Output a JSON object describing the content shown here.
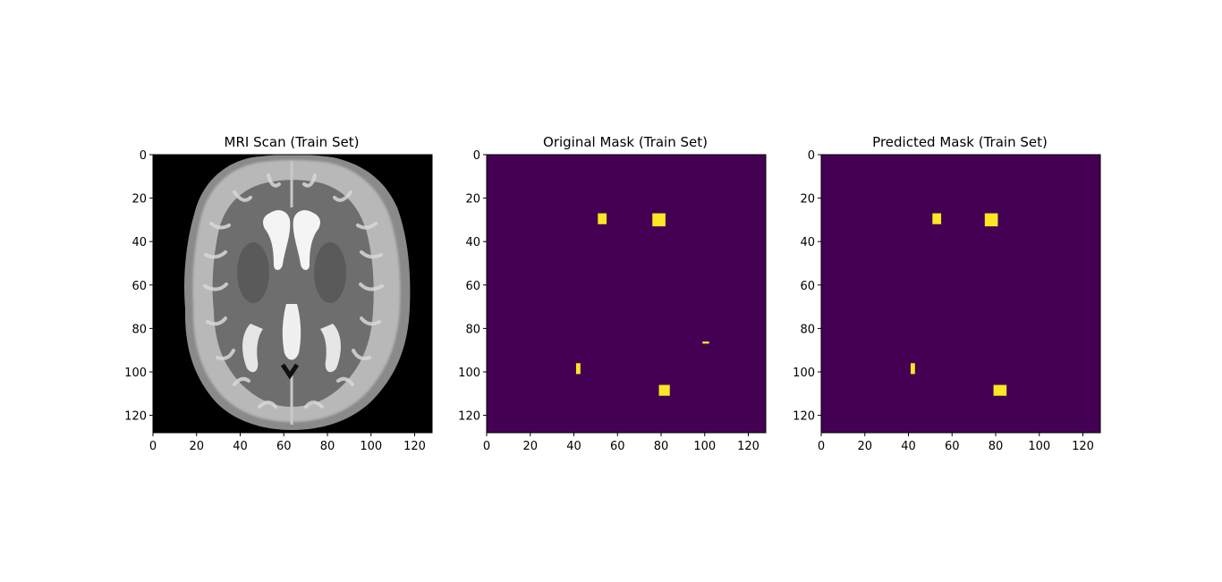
{
  "figure": {
    "panels": [
      {
        "title": "MRI Scan (Train Set)"
      },
      {
        "title": "Original Mask (Train Set)"
      },
      {
        "title": "Predicted Mask (Train Set)"
      }
    ]
  },
  "colors": {
    "background": "#ffffff",
    "mri_background": "#000000",
    "mask_background": "#440154",
    "mask_foreground": "#fde725"
  },
  "chart_data": [
    {
      "type": "heatmap",
      "title": "MRI Scan (Train Set)",
      "colormap": "gray",
      "xlim": [
        0,
        128
      ],
      "ylim": [
        128,
        0
      ],
      "xticks": [
        0,
        20,
        40,
        60,
        80,
        100,
        120
      ],
      "yticks": [
        0,
        20,
        40,
        60,
        80,
        100,
        120
      ],
      "grid": false
    },
    {
      "type": "heatmap",
      "title": "Original Mask (Train Set)",
      "colormap": "viridis",
      "xlim": [
        0,
        128
      ],
      "ylim": [
        128,
        0
      ],
      "xticks": [
        0,
        20,
        40,
        60,
        80,
        100,
        120
      ],
      "yticks": [
        0,
        20,
        40,
        60,
        80,
        100,
        120
      ],
      "grid": false,
      "regions": [
        {
          "x": [
            51,
            55
          ],
          "y": [
            27,
            32
          ]
        },
        {
          "x": [
            76,
            82
          ],
          "y": [
            27,
            33
          ]
        },
        {
          "x": [
            99,
            102
          ],
          "y": [
            86,
            87
          ]
        },
        {
          "x": [
            41,
            43
          ],
          "y": [
            96,
            101
          ]
        },
        {
          "x": [
            79,
            84
          ],
          "y": [
            106,
            111
          ]
        }
      ]
    },
    {
      "type": "heatmap",
      "title": "Predicted Mask (Train Set)",
      "colormap": "viridis",
      "xlim": [
        0,
        128
      ],
      "ylim": [
        128,
        0
      ],
      "xticks": [
        0,
        20,
        40,
        60,
        80,
        100,
        120
      ],
      "yticks": [
        0,
        20,
        40,
        60,
        80,
        100,
        120
      ],
      "grid": false,
      "regions": [
        {
          "x": [
            51,
            55
          ],
          "y": [
            27,
            32
          ]
        },
        {
          "x": [
            75,
            81
          ],
          "y": [
            27,
            33
          ]
        },
        {
          "x": [
            41,
            43
          ],
          "y": [
            96,
            101
          ]
        },
        {
          "x": [
            79,
            85
          ],
          "y": [
            106,
            111
          ]
        }
      ]
    }
  ]
}
